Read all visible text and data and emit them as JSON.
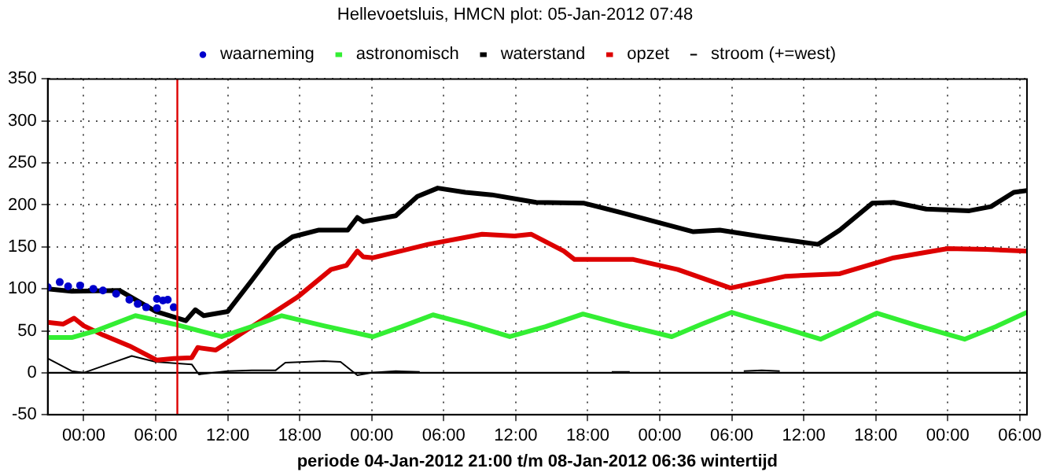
{
  "chart_data": {
    "type": "line",
    "title": "Hellevoetsluis, HMCN plot: 05-Jan-2012 07:48",
    "xlabel": "periode 04-Jan-2012 21:00 t/m 08-Jan-2012 06:36 wintertijd",
    "xlim": [
      "2012-01-04T21:00",
      "2012-01-08T06:36"
    ],
    "ylim": [
      -50,
      350
    ],
    "xticks": [
      {
        "value": "2012-01-05T00:00",
        "label": "00:00"
      },
      {
        "value": "2012-01-05T06:00",
        "label": "06:00"
      },
      {
        "value": "2012-01-05T12:00",
        "label": "12:00"
      },
      {
        "value": "2012-01-05T18:00",
        "label": "18:00"
      },
      {
        "value": "2012-01-06T00:00",
        "label": "00:00"
      },
      {
        "value": "2012-01-06T06:00",
        "label": "06:00"
      },
      {
        "value": "2012-01-06T12:00",
        "label": "12:00"
      },
      {
        "value": "2012-01-06T18:00",
        "label": "18:00"
      },
      {
        "value": "2012-01-07T00:00",
        "label": "00:00"
      },
      {
        "value": "2012-01-07T06:00",
        "label": "06:00"
      },
      {
        "value": "2012-01-07T12:00",
        "label": "12:00"
      },
      {
        "value": "2012-01-07T18:00",
        "label": "18:00"
      },
      {
        "value": "2012-01-08T00:00",
        "label": "00:00"
      },
      {
        "value": "2012-01-08T06:00",
        "label": "06:00"
      }
    ],
    "yticks": [
      -50,
      0,
      50,
      100,
      150,
      200,
      250,
      300,
      350
    ],
    "grid": true,
    "legend": "top",
    "line_style": "solid",
    "marker": "none",
    "ref_lines": [
      {
        "axis": "y",
        "value": 0,
        "color": "#000000"
      },
      {
        "axis": "x",
        "value": "2012-01-05T07:48",
        "color": "#dd0000"
      }
    ],
    "series": [
      {
        "name": "astronomisch",
        "color": "#33ee33",
        "x": [
          "2012-01-04T21:00",
          "2012-01-04T23:00",
          "2012-01-05T01:00",
          "2012-01-05T04:18",
          "2012-01-05T07:30",
          "2012-01-05T11:30",
          "2012-01-05T14:00",
          "2012-01-05T16:30",
          "2012-01-05T20:00",
          "2012-01-06T00:06",
          "2012-01-06T02:30",
          "2012-01-06T05:06",
          "2012-01-06T08:00",
          "2012-01-06T11:30",
          "2012-01-06T14:30",
          "2012-01-06T17:36",
          "2012-01-06T21:00",
          "2012-01-07T01:00",
          "2012-01-07T03:30",
          "2012-01-07T06:00",
          "2012-01-07T09:30",
          "2012-01-07T13:24",
          "2012-01-07T16:00",
          "2012-01-07T18:06",
          "2012-01-07T21:30",
          "2012-01-08T01:24",
          "2012-01-08T04:00",
          "2012-01-08T06:36"
        ],
        "values": [
          42,
          42,
          50,
          68,
          58,
          43,
          55,
          68,
          56,
          43,
          55,
          69,
          58,
          43,
          55,
          70,
          57,
          43,
          58,
          72,
          57,
          40,
          57,
          71,
          56,
          40,
          55,
          72
        ]
      },
      {
        "name": "waterstand",
        "color": "#000000",
        "x": [
          "2012-01-04T21:00",
          "2012-01-04T23:00",
          "2012-01-05T03:00",
          "2012-01-05T06:00",
          "2012-01-05T08:30",
          "2012-01-05T09:18",
          "2012-01-05T10:00",
          "2012-01-05T12:00",
          "2012-01-05T14:00",
          "2012-01-05T16:00",
          "2012-01-05T17:24",
          "2012-01-05T19:36",
          "2012-01-05T22:00",
          "2012-01-05T22:48",
          "2012-01-05T23:18",
          "2012-01-06T02:00",
          "2012-01-06T03:48",
          "2012-01-06T05:30",
          "2012-01-06T07:48",
          "2012-01-06T10:00",
          "2012-01-06T13:42",
          "2012-01-06T17:42",
          "2012-01-06T21:00",
          "2012-01-07T02:48",
          "2012-01-07T05:00",
          "2012-01-07T08:36",
          "2012-01-07T13:12",
          "2012-01-07T15:00",
          "2012-01-07T17:42",
          "2012-01-07T19:30",
          "2012-01-07T22:12",
          "2012-01-08T01:48",
          "2012-01-08T03:36",
          "2012-01-08T05:30",
          "2012-01-08T06:36"
        ],
        "values": [
          100,
          97,
          98,
          73,
          62,
          75,
          68,
          73,
          110,
          148,
          162,
          170,
          170,
          185,
          180,
          187,
          210,
          220,
          215,
          212,
          203,
          202,
          190,
          168,
          170,
          162,
          153,
          170,
          202,
          203,
          195,
          193,
          198,
          215,
          217
        ]
      },
      {
        "name": "waarneming",
        "type": "scatter",
        "marker": "circle",
        "color": "#0000cc",
        "x": [
          "2012-01-04T21:00",
          "2012-01-04T22:00",
          "2012-01-04T22:42",
          "2012-01-04T23:42",
          "2012-01-05T00:48",
          "2012-01-05T01:36",
          "2012-01-05T02:42",
          "2012-01-05T03:48",
          "2012-01-05T04:30",
          "2012-01-05T05:12",
          "2012-01-05T06:06",
          "2012-01-05T06:06",
          "2012-01-05T06:36",
          "2012-01-05T07:00",
          "2012-01-05T07:30"
        ],
        "values": [
          102,
          108,
          103,
          104,
          100,
          98,
          94,
          87,
          82,
          78,
          77,
          88,
          86,
          87,
          78
        ]
      },
      {
        "name": "opzet",
        "color": "#dd0000",
        "x": [
          "2012-01-04T21:00",
          "2012-01-04T22:18",
          "2012-01-04T23:12",
          "2012-01-05T00:00",
          "2012-01-05T01:36",
          "2012-01-05T03:48",
          "2012-01-05T06:06",
          "2012-01-05T07:30",
          "2012-01-05T09:00",
          "2012-01-05T09:30",
          "2012-01-05T11:00",
          "2012-01-05T12:24",
          "2012-01-05T15:06",
          "2012-01-05T17:48",
          "2012-01-05T20:36",
          "2012-01-05T21:54",
          "2012-01-05T22:48",
          "2012-01-05T23:18",
          "2012-01-06T00:06",
          "2012-01-06T04:42",
          "2012-01-06T09:12",
          "2012-01-06T11:54",
          "2012-01-06T13:18",
          "2012-01-06T16:00",
          "2012-01-06T16:54",
          "2012-01-06T21:48",
          "2012-01-07T01:30",
          "2012-01-07T05:54",
          "2012-01-07T10:30",
          "2012-01-07T15:00",
          "2012-01-07T19:30",
          "2012-01-08T00:00",
          "2012-01-08T03:12",
          "2012-01-08T06:36"
        ],
        "values": [
          60,
          58,
          65,
          56,
          45,
          32,
          15,
          17,
          18,
          30,
          27,
          40,
          65,
          90,
          123,
          128,
          145,
          138,
          137,
          153,
          165,
          163,
          165,
          145,
          135,
          135,
          123,
          101,
          115,
          118,
          137,
          148,
          147,
          145
        ]
      },
      {
        "name": "stroom (+=west)",
        "color": "#000000",
        "x": [
          "2012-01-04T21:00",
          "2012-01-04T23:00",
          "2012-01-05T00:00",
          "2012-01-05T02:00",
          "2012-01-05T04:00",
          "2012-01-05T06:00",
          "2012-01-05T09:00",
          "2012-01-05T09:36",
          "2012-01-05T12:00",
          "2012-01-05T14:00",
          "2012-01-05T16:00",
          "2012-01-05T16:48",
          "2012-01-05T20:00",
          "2012-01-05T21:24",
          "2012-01-05T22:48",
          "2012-01-06T00:00",
          "2012-01-06T02:00",
          "2012-01-06T04:00",
          "2012-01-06T05:00",
          "2012-01-06T20:00",
          "2012-01-06T21:30",
          "2012-01-06T22:00",
          "2012-01-07T07:00",
          "2012-01-07T08:30",
          "2012-01-07T10:00"
        ],
        "values": [
          17,
          2,
          0,
          10,
          20,
          13,
          10,
          -2,
          2,
          3,
          3,
          12,
          14,
          13,
          -3,
          0,
          2,
          1,
          null,
          1,
          1,
          null,
          2,
          3,
          2
        ]
      }
    ]
  }
}
